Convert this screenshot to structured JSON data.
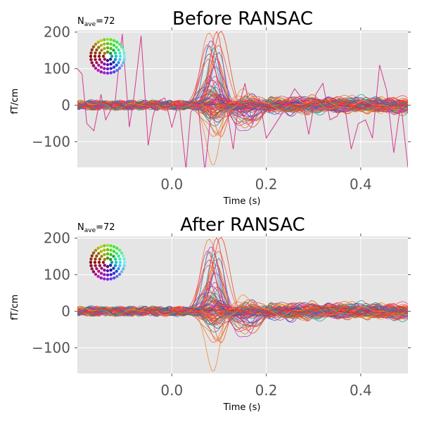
{
  "chart_data": [
    {
      "type": "line",
      "title": "Before RANSAC",
      "nave_label": "N",
      "nave_sub": "ave",
      "nave_value": "=72",
      "xlabel": "Time (s)",
      "ylabel": "fT/cm",
      "xlim": [
        -0.2,
        0.5
      ],
      "ylim": [
        -170,
        205
      ],
      "xticks": [
        {
          "v": 0.0,
          "label": "0.0"
        },
        {
          "v": 0.2,
          "label": "0.2"
        },
        {
          "v": 0.4,
          "label": "0.4"
        }
      ],
      "yticks": [
        {
          "v": 200,
          "label": "200"
        },
        {
          "v": 100,
          "label": "100"
        },
        {
          "v": 0,
          "label": "0"
        },
        {
          "v": -100,
          "label": "−100"
        }
      ],
      "grid": true,
      "background": "#e5e5e5",
      "sensor_legend": "top-left",
      "channel_count": 100,
      "peak_time": 0.09,
      "peak_range": [
        -160,
        200
      ],
      "bad_channel": {
        "color": "#d4398f",
        "x": [
          -0.2,
          -0.19,
          -0.18,
          -0.165,
          -0.15,
          -0.14,
          -0.12,
          -0.105,
          -0.09,
          -0.08,
          -0.065,
          -0.05,
          -0.04,
          -0.03,
          -0.015,
          0.0,
          0.015,
          0.03,
          0.04,
          0.055,
          0.07,
          0.085,
          0.1,
          0.115,
          0.13,
          0.14,
          0.155,
          0.17,
          0.185,
          0.2,
          0.215,
          0.23,
          0.245,
          0.26,
          0.275,
          0.29,
          0.305,
          0.32,
          0.335,
          0.35,
          0.365,
          0.38,
          0.395,
          0.41,
          0.425,
          0.44,
          0.455,
          0.47,
          0.485,
          0.5
        ],
        "y": [
          100,
          85,
          -50,
          -70,
          30,
          -40,
          10,
          195,
          -60,
          25,
          190,
          -110,
          -30,
          10,
          20,
          -60,
          10,
          -175,
          -20,
          10,
          -180,
          5,
          30,
          0,
          -120,
          -10,
          60,
          -50,
          20,
          -90,
          -60,
          -30,
          10,
          45,
          20,
          -80,
          30,
          60,
          -40,
          -30,
          5,
          -120,
          -50,
          -40,
          -90,
          110,
          40,
          -130,
          5,
          -170
        ]
      }
    },
    {
      "type": "line",
      "title": "After RANSAC",
      "nave_label": "N",
      "nave_sub": "ave",
      "nave_value": "=72",
      "xlabel": "Time (s)",
      "ylabel": "fT/cm",
      "xlim": [
        -0.2,
        0.5
      ],
      "ylim": [
        -170,
        205
      ],
      "xticks": [
        {
          "v": 0.0,
          "label": "0.0"
        },
        {
          "v": 0.2,
          "label": "0.2"
        },
        {
          "v": 0.4,
          "label": "0.4"
        }
      ],
      "yticks": [
        {
          "v": 200,
          "label": "200"
        },
        {
          "v": 100,
          "label": "100"
        },
        {
          "v": 0,
          "label": "0"
        },
        {
          "v": -100,
          "label": "−100"
        }
      ],
      "grid": true,
      "background": "#e5e5e5",
      "sensor_legend": "top-left",
      "channel_count": 100,
      "peak_time": 0.09,
      "peak_range": [
        -160,
        200
      ]
    }
  ]
}
